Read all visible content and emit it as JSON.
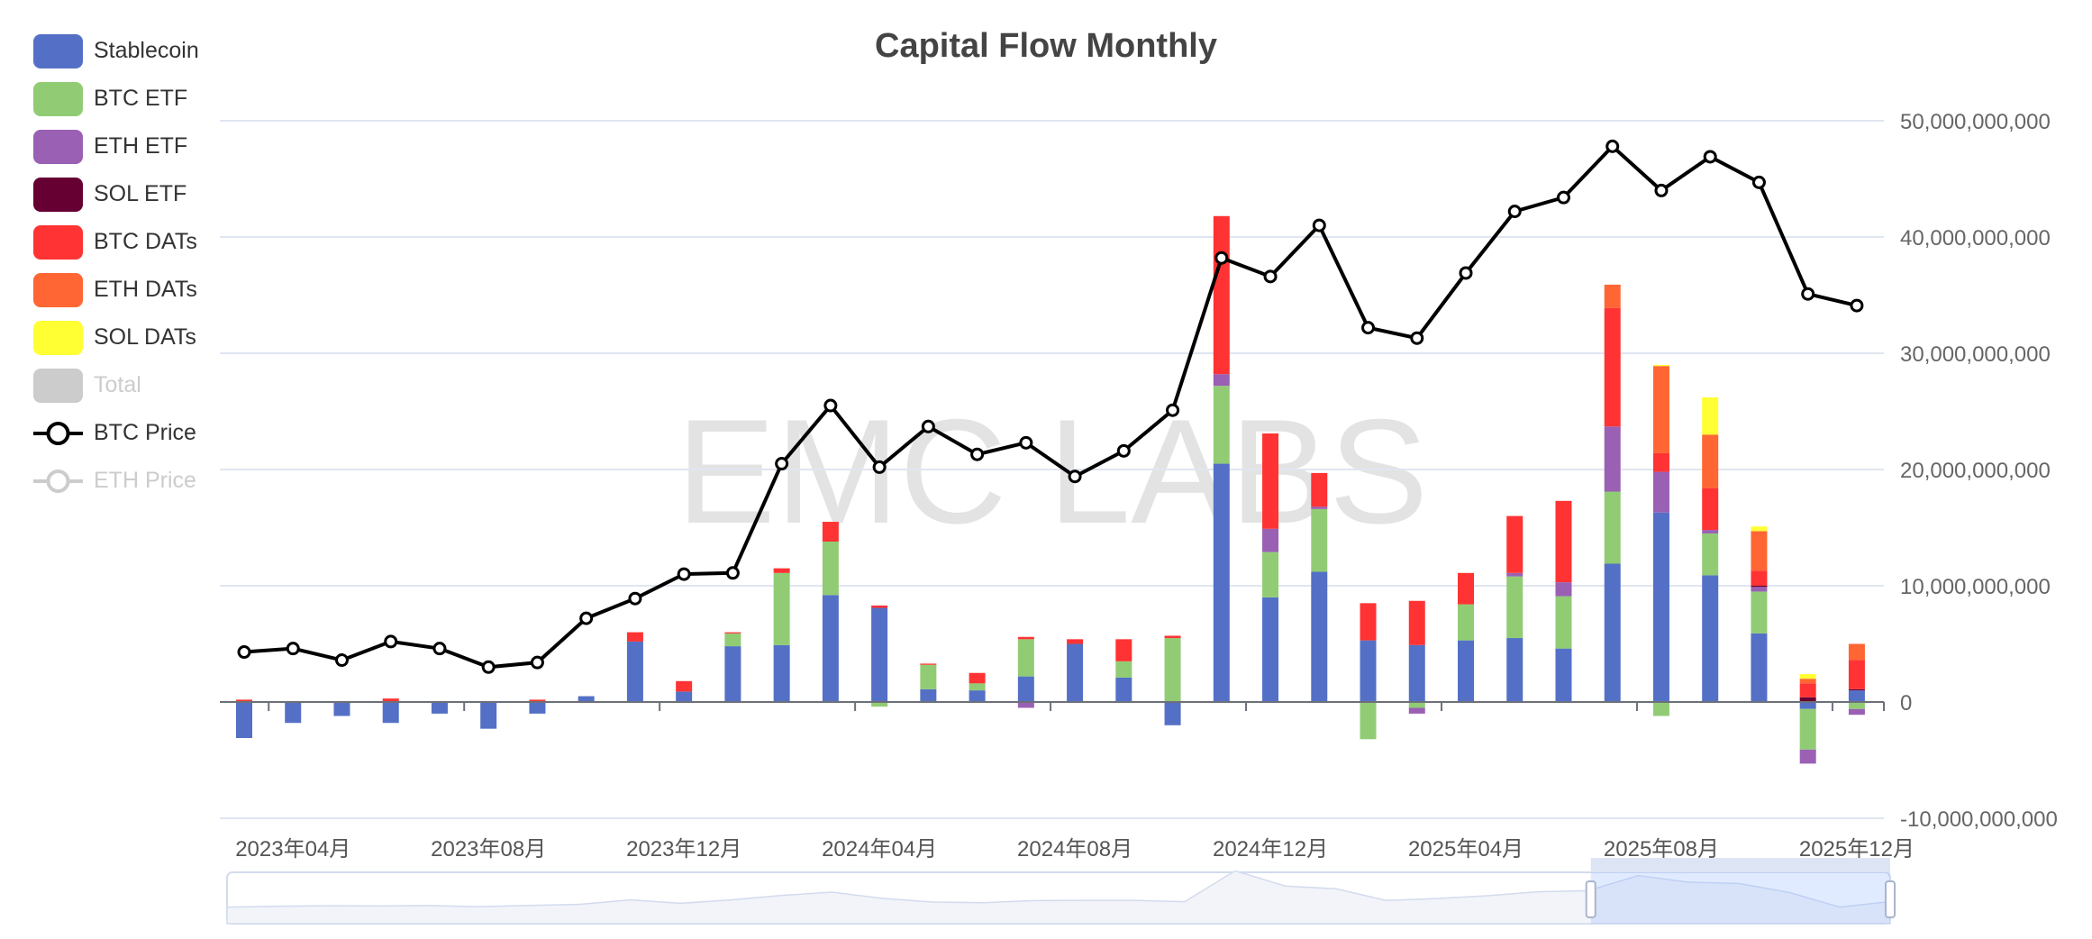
{
  "title": "Capital Flow Monthly",
  "watermark": "EMC LABS",
  "legend": [
    {
      "name": "Stablecoin",
      "color": "#5470c6",
      "kind": "bar",
      "active": true
    },
    {
      "name": "BTC ETF",
      "color": "#91cc75",
      "kind": "bar",
      "active": true
    },
    {
      "name": "ETH ETF",
      "color": "#9a60b4",
      "kind": "bar",
      "active": true
    },
    {
      "name": "SOL ETF",
      "color": "#660033",
      "kind": "bar",
      "active": true
    },
    {
      "name": "BTC DATs",
      "color": "#ff3333",
      "kind": "bar",
      "active": true
    },
    {
      "name": "ETH DATs",
      "color": "#ff6633",
      "kind": "bar",
      "active": true
    },
    {
      "name": "SOL DATs",
      "color": "#ffff33",
      "kind": "bar",
      "active": true
    },
    {
      "name": "Total",
      "color": "#cccccc",
      "kind": "bar",
      "active": false
    },
    {
      "name": "BTC Price",
      "color": "#000000",
      "kind": "line",
      "active": true
    },
    {
      "name": "ETH Price",
      "color": "#cccccc",
      "kind": "line",
      "active": false
    }
  ],
  "chart_data": {
    "type": "bar",
    "stacked": true,
    "title": "Capital Flow Monthly",
    "categories": [
      "2023-03",
      "2023-04",
      "2023-05",
      "2023-06",
      "2023-07",
      "2023-08",
      "2023-09",
      "2023-10",
      "2023-11",
      "2023-12",
      "2024-01",
      "2024-02",
      "2024-03",
      "2024-04",
      "2024-05",
      "2024-06",
      "2024-07",
      "2024-08",
      "2024-09",
      "2024-10",
      "2024-11",
      "2024-12",
      "2025-01",
      "2025-02",
      "2025-03",
      "2025-04",
      "2025-05",
      "2025-06",
      "2025-07",
      "2025-08",
      "2025-09",
      "2025-10",
      "2025-11",
      "2025-12"
    ],
    "x_tick_labels": [
      "2023年04月",
      "2023年08月",
      "2023年12月",
      "2024年04月",
      "2024年08月",
      "2024年12月",
      "2025年04月",
      "2025年08月",
      "2025年12月"
    ],
    "y_tick_labels": [
      "-10,000,000,000",
      "0",
      "10,000,000,000",
      "20,000,000,000",
      "30,000,000,000",
      "40,000,000,000",
      "50,000,000,000"
    ],
    "ylim": [
      -10000000000,
      50000000000
    ],
    "y_axis_position": "right",
    "grid": true,
    "legend_position": "left",
    "series": [
      {
        "name": "Stablecoin",
        "values": [
          -3.1,
          -1.8,
          -1.2,
          -1.8,
          -1.0,
          -2.3,
          -1.0,
          0.5,
          5.2,
          0.9,
          4.8,
          4.9,
          9.2,
          8.1,
          1.1,
          1.0,
          2.2,
          5.0,
          2.1,
          -2.0,
          20.5,
          9.0,
          11.2,
          5.3,
          4.9,
          5.3,
          5.5,
          4.6,
          11.9,
          16.3,
          10.9,
          5.9,
          -0.6,
          1.0
        ]
      },
      {
        "name": "BTC ETF",
        "values": [
          0,
          0,
          0,
          0,
          0,
          0,
          0,
          0,
          0,
          0,
          1.1,
          6.2,
          4.6,
          -0.4,
          2.1,
          0.6,
          3.2,
          0,
          1.4,
          5.5,
          6.7,
          3.9,
          5.4,
          -3.2,
          -0.5,
          3.1,
          5.3,
          4.5,
          6.2,
          -1.2,
          3.6,
          3.6,
          -3.5,
          -0.6
        ]
      },
      {
        "name": "ETH ETF",
        "values": [
          0,
          0,
          0,
          0,
          0,
          0,
          0,
          0,
          0,
          0,
          0,
          0,
          0,
          0,
          0,
          0,
          -0.5,
          0,
          0,
          0,
          1.0,
          2.0,
          0.2,
          0,
          -0.5,
          0,
          0.3,
          1.2,
          5.6,
          3.5,
          0.3,
          0.4,
          -1.2,
          -0.5
        ]
      },
      {
        "name": "SOL ETF",
        "values": [
          0,
          0,
          0,
          0,
          0,
          0,
          0,
          0,
          0,
          0,
          0,
          0,
          0,
          0,
          0,
          0,
          0,
          0,
          0,
          0,
          0,
          0,
          0,
          0,
          0,
          0,
          0,
          0,
          0,
          0,
          0,
          0.1,
          0.4,
          0.1
        ]
      },
      {
        "name": "BTC DATs",
        "values": [
          0.2,
          0,
          0,
          0.3,
          0,
          0,
          0.2,
          0,
          0.8,
          0.9,
          0.1,
          0.4,
          1.7,
          0.2,
          0.1,
          0.9,
          0.2,
          0.4,
          1.9,
          0.2,
          13.6,
          8.2,
          2.9,
          3.2,
          3.8,
          2.7,
          4.9,
          7.0,
          10.2,
          1.6,
          3.6,
          1.3,
          1.2,
          2.5
        ]
      },
      {
        "name": "ETH DATs",
        "values": [
          0,
          0,
          0,
          0,
          0,
          0,
          0,
          0,
          0,
          0,
          0,
          0,
          0,
          0,
          0,
          0,
          0,
          0,
          0,
          0,
          0,
          0,
          0,
          0,
          0,
          0,
          0,
          0,
          2.0,
          7.5,
          4.6,
          3.4,
          0.4,
          1.4
        ]
      },
      {
        "name": "SOL DATs",
        "values": [
          0,
          0,
          0,
          0,
          0,
          0,
          0,
          0,
          0,
          0,
          0,
          0,
          0,
          0,
          0,
          0,
          0,
          0,
          0,
          0,
          0,
          0,
          0,
          0,
          0,
          0,
          0,
          0,
          0,
          0.1,
          3.2,
          0.4,
          0.4,
          0
        ]
      }
    ],
    "value_unit": "billion",
    "line_series": {
      "name": "BTC Price",
      "plotted_on_axis_scale_billion": [
        4.3,
        4.6,
        3.6,
        5.2,
        4.6,
        3.0,
        3.4,
        7.2,
        8.9,
        11.0,
        11.1,
        20.5,
        25.5,
        20.2,
        23.7,
        21.3,
        22.3,
        19.4,
        21.6,
        25.1,
        38.2,
        36.6,
        41.0,
        32.2,
        31.3,
        36.9,
        42.2,
        43.4,
        47.8,
        44.0,
        46.9,
        44.7,
        35.1,
        34.1
      ]
    },
    "data_zoom": {
      "start_percent": 82,
      "end_percent": 100
    }
  }
}
